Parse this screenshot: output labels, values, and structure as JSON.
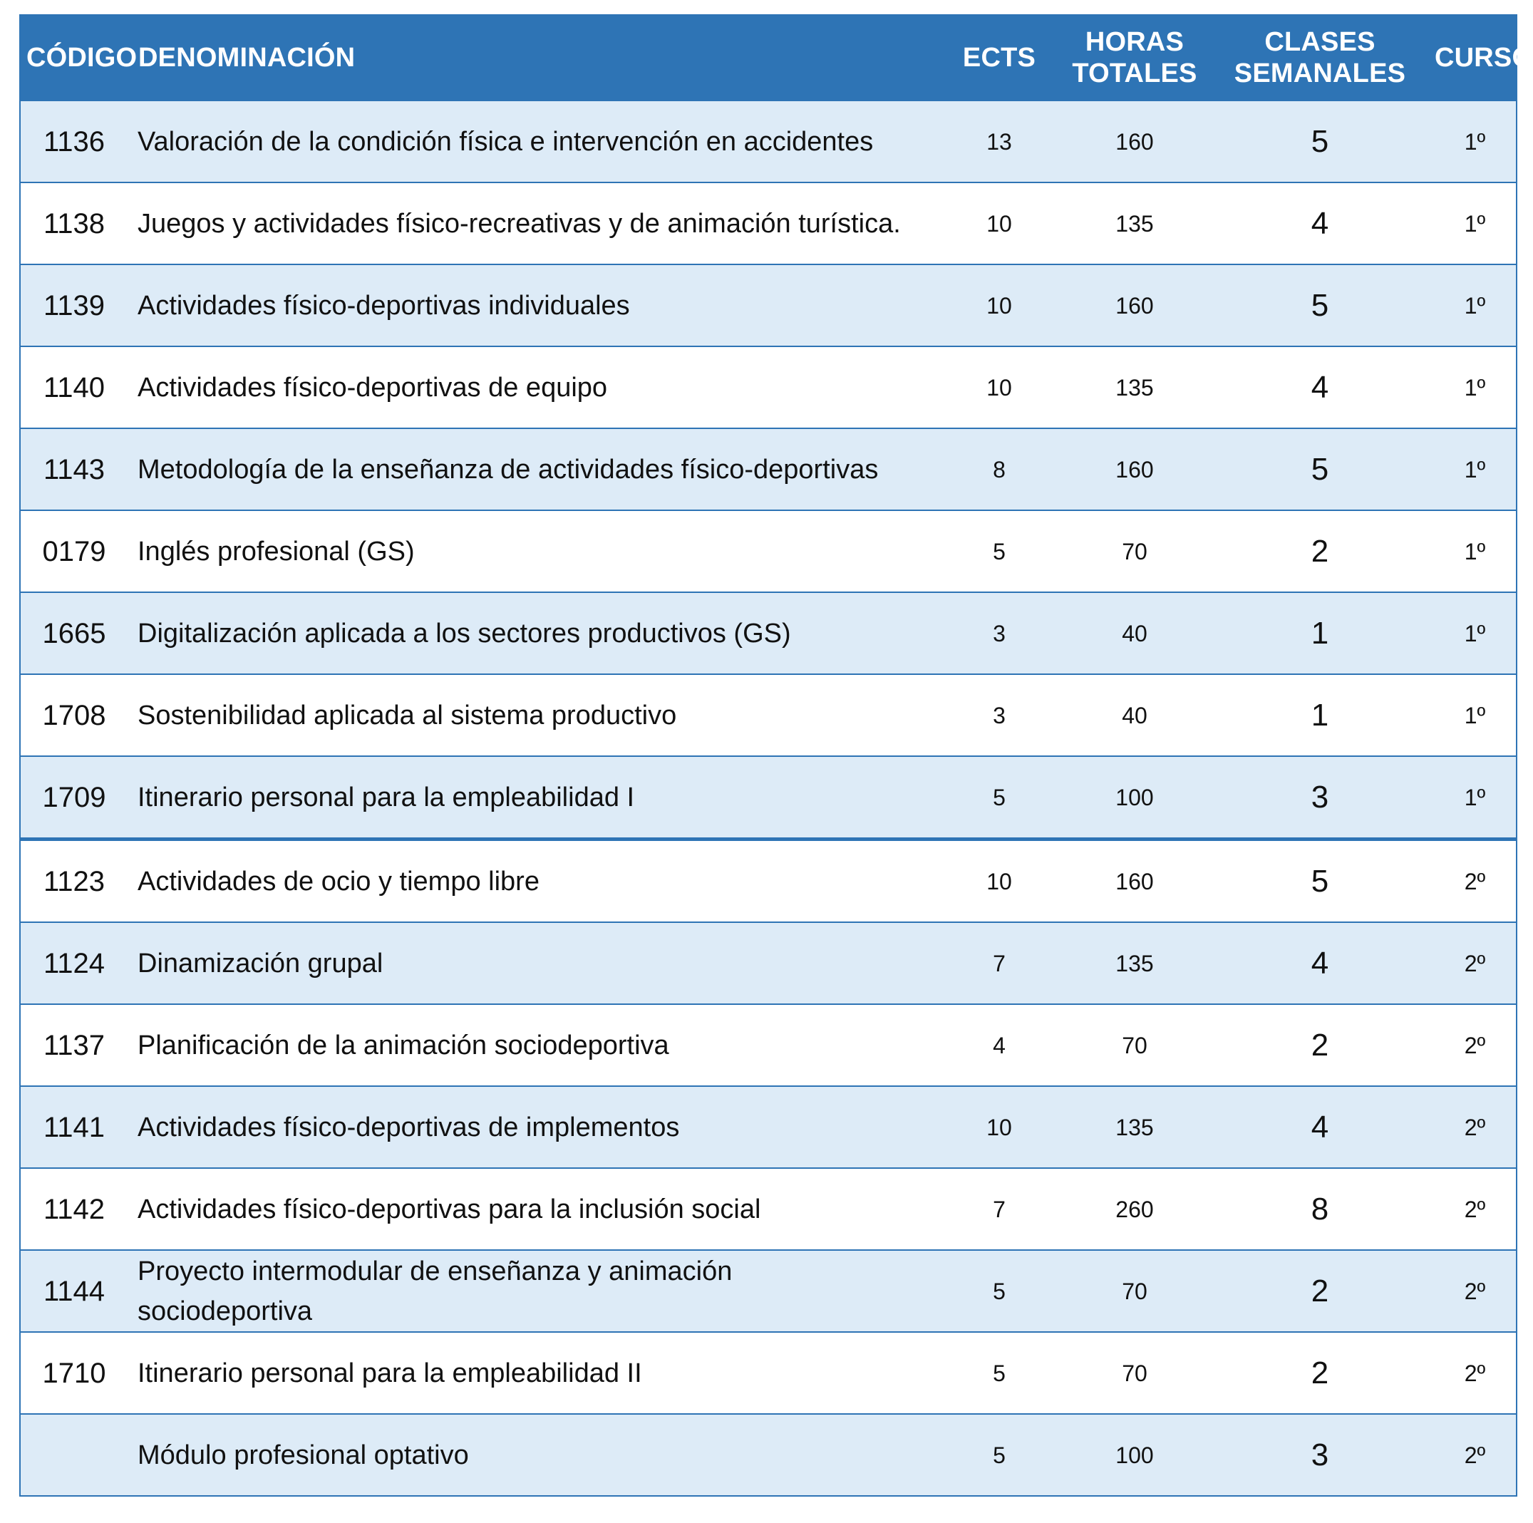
{
  "headers": {
    "code": "CÓDIGO",
    "name": "DENOMINACIÓN",
    "ects": "ECTS",
    "hours_line1": "HORAS",
    "hours_line2": "TOTALES",
    "classes_line1": "CLASES",
    "classes_line2": "SEMANALES",
    "course": "CURSO"
  },
  "colors": {
    "header_bg": "#2e74b5",
    "header_text": "#ffffff",
    "row_shaded": "#ddebf7",
    "row_plain": "#ffffff",
    "border": "#2e74b5"
  },
  "rows": [
    {
      "code": "1136",
      "name": "Valoración de la condición física e intervención en accidentes",
      "ects": "13",
      "hours": "160",
      "classes": "5",
      "course": "1º"
    },
    {
      "code": "1138",
      "name": "Juegos y actividades físico-recreativas y de animación turística.",
      "ects": "10",
      "hours": "135",
      "classes": "4",
      "course": "1º"
    },
    {
      "code": "1139",
      "name": "Actividades físico-deportivas individuales",
      "ects": "10",
      "hours": "160",
      "classes": "5",
      "course": "1º"
    },
    {
      "code": "1140",
      "name": "Actividades físico-deportivas de equipo",
      "ects": "10",
      "hours": "135",
      "classes": "4",
      "course": "1º"
    },
    {
      "code": "1143",
      "name": "Metodología de la enseñanza de actividades físico-deportivas",
      "ects": "8",
      "hours": "160",
      "classes": "5",
      "course": "1º"
    },
    {
      "code": "0179",
      "name": "Inglés profesional (GS)",
      "ects": "5",
      "hours": "70",
      "classes": "2",
      "course": "1º"
    },
    {
      "code": "1665",
      "name": "Digitalización aplicada a los sectores productivos (GS)",
      "ects": "3",
      "hours": "40",
      "classes": "1",
      "course": "1º"
    },
    {
      "code": "1708",
      "name": "Sostenibilidad aplicada al sistema productivo",
      "ects": "3",
      "hours": "40",
      "classes": "1",
      "course": "1º"
    },
    {
      "code": "1709",
      "name": "Itinerario personal para la empleabilidad I",
      "ects": "5",
      "hours": "100",
      "classes": "3",
      "course": "1º"
    },
    {
      "code": "1123",
      "name": "Actividades de ocio y tiempo libre",
      "ects": "10",
      "hours": "160",
      "classes": "5",
      "course": "2º"
    },
    {
      "code": "1124",
      "name": "Dinamización grupal",
      "ects": "7",
      "hours": "135",
      "classes": "4",
      "course": "2º"
    },
    {
      "code": "1137",
      "name": "Planificación de la animación sociodeportiva",
      "ects": "4",
      "hours": "70",
      "classes": "2",
      "course": "2º"
    },
    {
      "code": "1141",
      "name": "Actividades físico-deportivas de implementos",
      "ects": "10",
      "hours": "135",
      "classes": "4",
      "course": "2º"
    },
    {
      "code": "1142",
      "name": "Actividades físico-deportivas para la inclusión social",
      "ects": "7",
      "hours": "260",
      "classes": "8",
      "course": "2º"
    },
    {
      "code": "1144",
      "name": "Proyecto intermodular de enseñanza y animación sociodeportiva",
      "ects": "5",
      "hours": "70",
      "classes": "2",
      "course": "2º"
    },
    {
      "code": "1710",
      "name": "Itinerario personal para la empleabilidad II",
      "ects": "5",
      "hours": "70",
      "classes": "2",
      "course": "2º"
    },
    {
      "code": "",
      "name": "Módulo profesional optativo",
      "ects": "5",
      "hours": "100",
      "classes": "3",
      "course": "2º"
    }
  ]
}
